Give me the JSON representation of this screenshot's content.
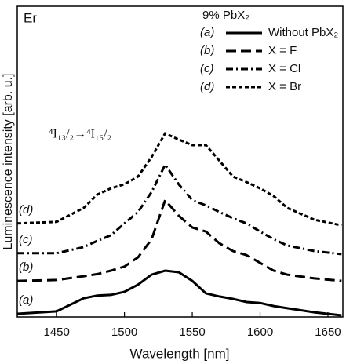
{
  "chart_data": {
    "type": "line",
    "title": "Er",
    "legend_title": "9% PbX₂",
    "annotation": "⁴I₁₃/₂→⁴I₁₅/₂",
    "xlabel": "Wavelength [nm]",
    "ylabel": "Luminescence intensity [arb. u.]",
    "xlim": [
      1421,
      1661
    ],
    "xticks": [
      1450,
      1500,
      1550,
      1600,
      1650
    ],
    "ylim": [
      0,
      100
    ],
    "yticks": [],
    "x": [
      1421,
      1450,
      1470,
      1480,
      1490,
      1500,
      1510,
      1520,
      1530,
      1540,
      1550,
      1560,
      1570,
      1580,
      1590,
      1600,
      1610,
      1620,
      1640,
      1660
    ],
    "series": [
      {
        "label": "(a)",
        "name": "Without PbX₂",
        "color": "#000000",
        "linestyle": "solid",
        "values": [
          1.0,
          1.8,
          6.0,
          6.9,
          7.1,
          8.1,
          10.4,
          13.6,
          14.9,
          14.4,
          11.6,
          7.6,
          6.6,
          5.8,
          4.8,
          4.5,
          3.5,
          2.8,
          1.5,
          0.5
        ]
      },
      {
        "label": "(b)",
        "name": "X = F",
        "color": "#000000",
        "linestyle": "dashed",
        "values": [
          11.6,
          11.9,
          13.1,
          13.8,
          14.9,
          16.2,
          19.2,
          25.0,
          37.6,
          32.6,
          28.8,
          27.5,
          23.7,
          21.2,
          19.9,
          17.4,
          14.9,
          13.6,
          12.4,
          11.6
        ]
      },
      {
        "label": "(c)",
        "name": "X = Cl",
        "color": "#000000",
        "linestyle": "dashdot",
        "values": [
          20.5,
          20.5,
          22.5,
          24.5,
          26.3,
          30.1,
          33.8,
          40.2,
          49.0,
          42.7,
          37.6,
          35.9,
          33.8,
          31.8,
          30.1,
          27.5,
          25.0,
          23.0,
          21.2,
          20.2
        ]
      },
      {
        "label": "(d)",
        "name": "X = Br",
        "color": "#000000",
        "linestyle": "shortdash",
        "values": [
          30.1,
          30.6,
          35.1,
          39.4,
          41.4,
          42.7,
          45.2,
          51.5,
          59.1,
          57.1,
          55.3,
          55.3,
          50.3,
          45.2,
          43.4,
          41.4,
          38.9,
          35.1,
          31.3,
          29.5
        ]
      }
    ]
  }
}
